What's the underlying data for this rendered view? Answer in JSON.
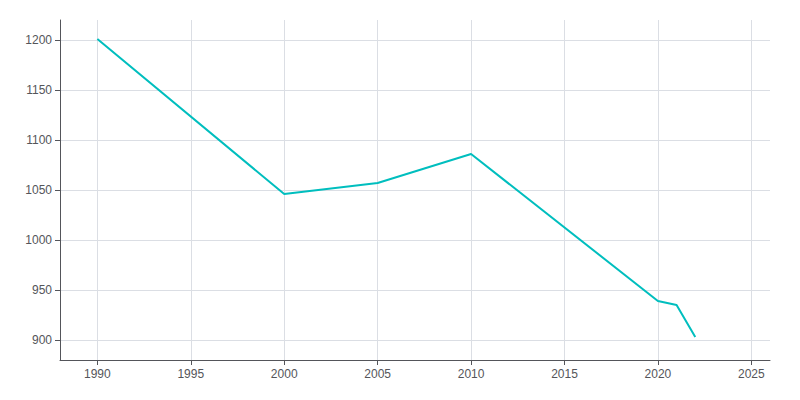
{
  "chart_data": {
    "type": "line",
    "x": [
      1990,
      2000,
      2005,
      2010,
      2020,
      2021,
      2022
    ],
    "values": [
      1201,
      1046,
      1057,
      1086,
      939,
      935,
      903
    ],
    "color": "#00BEBE",
    "xlim": [
      1988,
      2026
    ],
    "xticks": [
      1990,
      1995,
      2000,
      2005,
      2010,
      2015,
      2020,
      2025
    ],
    "ylim": [
      880,
      1220
    ],
    "yticks": [
      900,
      950,
      1000,
      1050,
      1100,
      1150,
      1200
    ],
    "grid": true,
    "marker": "none"
  }
}
